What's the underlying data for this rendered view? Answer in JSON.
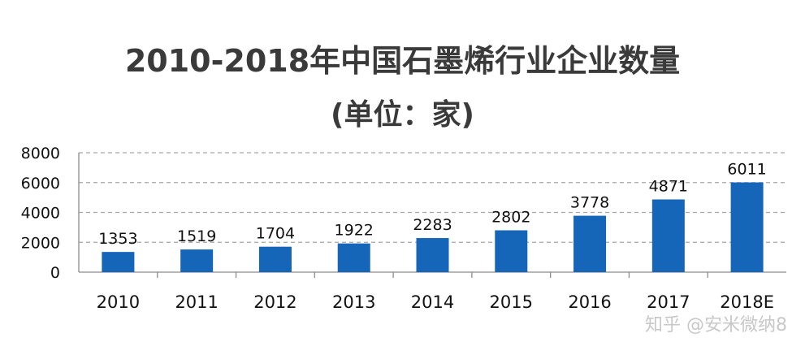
{
  "watermark": "知乎 @安米微纳8",
  "chart_data": {
    "type": "bar",
    "title": "2010-2018年中国石墨烯行业企业数量",
    "subtitle": "(单位：家)",
    "categories": [
      "2010",
      "2011",
      "2012",
      "2013",
      "2014",
      "2015",
      "2016",
      "2017",
      "2018E"
    ],
    "values": [
      1353,
      1519,
      1704,
      1922,
      2283,
      2802,
      3778,
      4871,
      6011
    ],
    "ylim": [
      0,
      8000
    ],
    "yticks": [
      "0",
      "2000",
      "4000",
      "6000",
      "8000"
    ],
    "grid": true,
    "bar_color": "#1565b8",
    "gridline_color": "#a6a6a6"
  }
}
